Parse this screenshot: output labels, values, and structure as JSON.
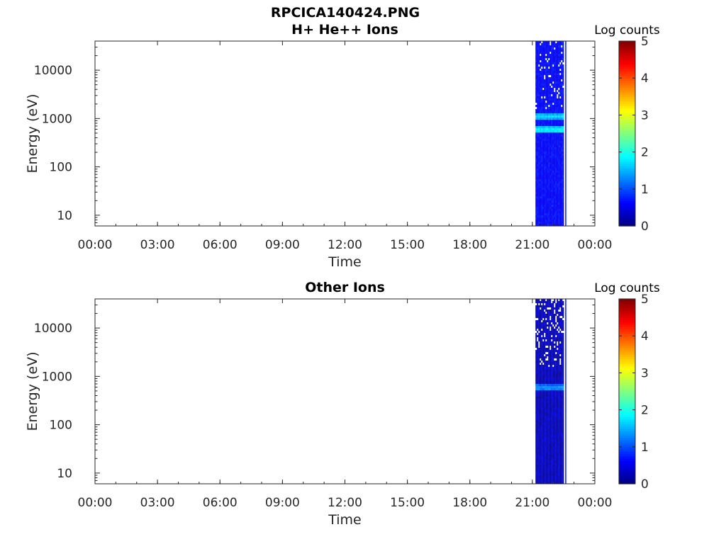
{
  "figure": {
    "title": "RPCICA140424.PNG"
  },
  "chart_data": [
    {
      "type": "heatmap",
      "title": "H+ He++ Ions",
      "xlabel": "Time",
      "ylabel": "Energy (eV)",
      "x_ticks": [
        "00:00",
        "03:00",
        "06:00",
        "09:00",
        "12:00",
        "15:00",
        "18:00",
        "21:00",
        "00:00"
      ],
      "x_range_hours": [
        0,
        24
      ],
      "y_scale": "log",
      "y_ticks": [
        "10",
        "100",
        "1000",
        "10000"
      ],
      "y_tick_values": [
        10,
        100,
        1000,
        10000
      ],
      "y_range": [
        6,
        40000
      ],
      "colorbar": {
        "label": "Log counts",
        "ticks": [
          "0",
          "1",
          "2",
          "3",
          "4",
          "5"
        ],
        "range": [
          0,
          5
        ],
        "colormap": "jet"
      },
      "data_interval_hours": [
        21.15,
        22.5
      ],
      "background_level": 0.6,
      "bands": [
        {
          "energy_eV": 1100,
          "level": 1.7
        },
        {
          "energy_eV": 580,
          "level": 1.9
        }
      ],
      "grid": false
    },
    {
      "type": "heatmap",
      "title": "Other Ions",
      "xlabel": "Time",
      "ylabel": "Energy (eV)",
      "x_ticks": [
        "00:00",
        "03:00",
        "06:00",
        "09:00",
        "12:00",
        "15:00",
        "18:00",
        "21:00",
        "00:00"
      ],
      "x_range_hours": [
        0,
        24
      ],
      "y_scale": "log",
      "y_ticks": [
        "10",
        "100",
        "1000",
        "10000"
      ],
      "y_tick_values": [
        10,
        100,
        1000,
        10000
      ],
      "y_range": [
        6,
        40000
      ],
      "colorbar": {
        "label": "Log counts",
        "ticks": [
          "0",
          "1",
          "2",
          "3",
          "4",
          "5"
        ],
        "range": [
          0,
          5
        ],
        "colormap": "jet"
      },
      "data_interval_hours": [
        21.15,
        22.5
      ],
      "background_level": 0.25,
      "bands": [
        {
          "energy_eV": 580,
          "level": 1.4
        }
      ],
      "grid": false
    }
  ]
}
